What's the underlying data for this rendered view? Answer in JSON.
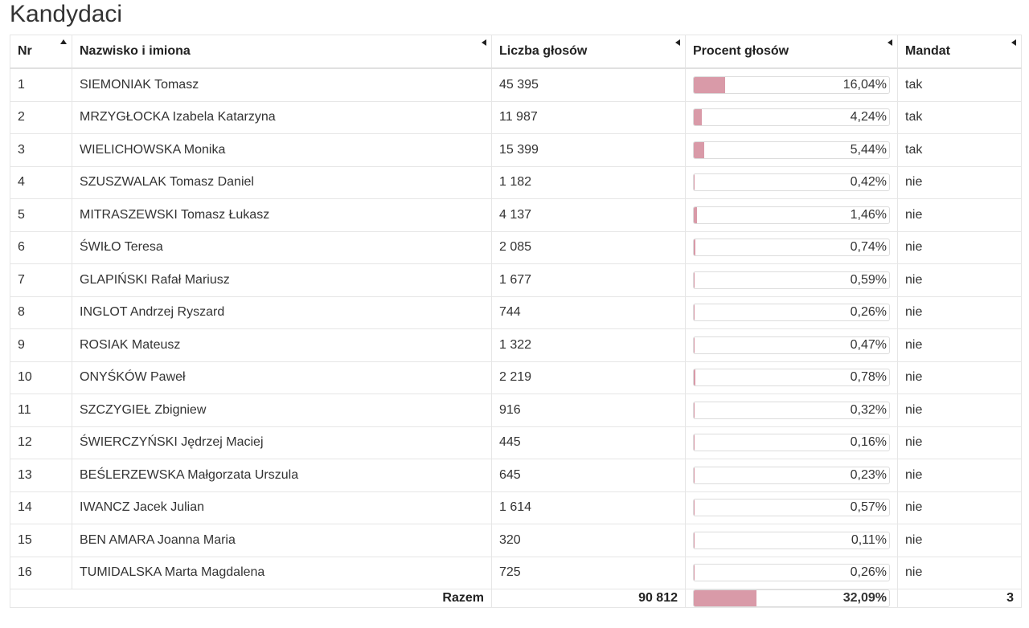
{
  "page": {
    "title": "Kandydaci"
  },
  "table": {
    "headers": {
      "nr": "Nr",
      "name": "Nazwisko i imiona",
      "votes": "Liczba głosów",
      "pct": "Procent głosów",
      "mandat": "Mandat"
    },
    "rows": [
      {
        "nr": "1",
        "name": "SIEMONIAK Tomasz",
        "votes": "45 395",
        "pct": "16,04%",
        "pct_value": 16.04,
        "mandat": "tak"
      },
      {
        "nr": "2",
        "name": "MRZYGŁOCKA Izabela Katarzyna",
        "votes": "11 987",
        "pct": "4,24%",
        "pct_value": 4.24,
        "mandat": "tak"
      },
      {
        "nr": "3",
        "name": "WIELICHOWSKA Monika",
        "votes": "15 399",
        "pct": "5,44%",
        "pct_value": 5.44,
        "mandat": "tak"
      },
      {
        "nr": "4",
        "name": "SZUSZWALAK Tomasz Daniel",
        "votes": "1 182",
        "pct": "0,42%",
        "pct_value": 0.42,
        "mandat": "nie"
      },
      {
        "nr": "5",
        "name": "MITRASZEWSKI Tomasz Łukasz",
        "votes": "4 137",
        "pct": "1,46%",
        "pct_value": 1.46,
        "mandat": "nie"
      },
      {
        "nr": "6",
        "name": "ŚWIŁO Teresa",
        "votes": "2 085",
        "pct": "0,74%",
        "pct_value": 0.74,
        "mandat": "nie"
      },
      {
        "nr": "7",
        "name": "GLAPIŃSKI Rafał Mariusz",
        "votes": "1 677",
        "pct": "0,59%",
        "pct_value": 0.59,
        "mandat": "nie"
      },
      {
        "nr": "8",
        "name": "INGLOT Andrzej Ryszard",
        "votes": "744",
        "pct": "0,26%",
        "pct_value": 0.26,
        "mandat": "nie"
      },
      {
        "nr": "9",
        "name": "ROSIAK Mateusz",
        "votes": "1 322",
        "pct": "0,47%",
        "pct_value": 0.47,
        "mandat": "nie"
      },
      {
        "nr": "10",
        "name": "ONYŚKÓW Paweł",
        "votes": "2 219",
        "pct": "0,78%",
        "pct_value": 0.78,
        "mandat": "nie"
      },
      {
        "nr": "11",
        "name": "SZCZYGIEŁ Zbigniew",
        "votes": "916",
        "pct": "0,32%",
        "pct_value": 0.32,
        "mandat": "nie"
      },
      {
        "nr": "12",
        "name": "ŚWIERCZYŃSKI Jędrzej Maciej",
        "votes": "445",
        "pct": "0,16%",
        "pct_value": 0.16,
        "mandat": "nie"
      },
      {
        "nr": "13",
        "name": "BEŚLERZEWSKA Małgorzata Urszula",
        "votes": "645",
        "pct": "0,23%",
        "pct_value": 0.23,
        "mandat": "nie"
      },
      {
        "nr": "14",
        "name": "IWANCZ Jacek Julian",
        "votes": "1 614",
        "pct": "0,57%",
        "pct_value": 0.57,
        "mandat": "nie"
      },
      {
        "nr": "15",
        "name": "BEN AMARA Joanna Maria",
        "votes": "320",
        "pct": "0,11%",
        "pct_value": 0.11,
        "mandat": "nie"
      },
      {
        "nr": "16",
        "name": "TUMIDALSKA Marta Magdalena",
        "votes": "725",
        "pct": "0,26%",
        "pct_value": 0.26,
        "mandat": "nie"
      }
    ],
    "total": {
      "label": "Razem",
      "votes": "90 812",
      "pct": "32,09%",
      "pct_value": 32.09,
      "mandat": "3"
    },
    "bar_color": "#d99aa8"
  }
}
